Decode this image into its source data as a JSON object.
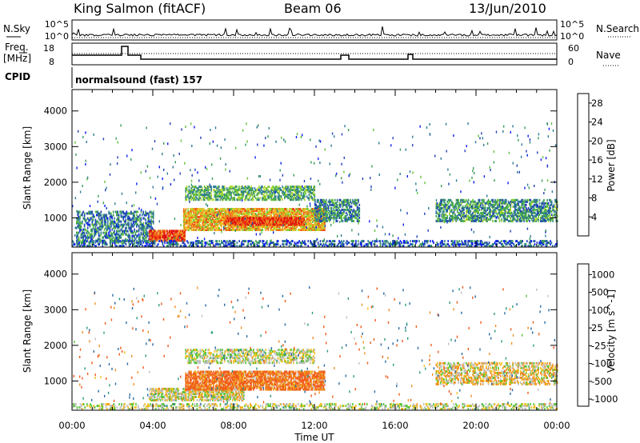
{
  "header": {
    "station": "King Salmon (fitACF)",
    "beam": "Beam 06",
    "date": "13/Jun/2010"
  },
  "noise_panel": {
    "left_label": "N.Sky",
    "right_label": "N.Search",
    "ticks_left": [
      "10^5",
      "10^0"
    ],
    "ticks_right": [
      "10^5",
      "10^0"
    ]
  },
  "freq_panel": {
    "left_label_1": "Freq.",
    "left_label_2": "[MHz]",
    "right_label": "Nave",
    "ticks_left": [
      "18",
      "8"
    ],
    "ticks_right": [
      "60",
      "0"
    ]
  },
  "cpid_panel": {
    "label": "CPID",
    "text": "normalsound (fast) 157"
  },
  "chart_data": [
    {
      "type": "heatmap",
      "title": "",
      "xlabel": "",
      "ylabel": "Slant Range [km]",
      "x_ticks": [
        "00:00",
        "04:00",
        "08:00",
        "12:00",
        "16:00",
        "20:00",
        "00:00"
      ],
      "y_ticks": [
        "1000",
        "2000",
        "3000",
        "4000"
      ],
      "ylim": [
        180,
        4600
      ],
      "xlim_hours": [
        0,
        24
      ],
      "colorbar": {
        "label": "Power [dB]",
        "ticks": [
          "4",
          "8",
          "12",
          "16",
          "20",
          "24",
          "28"
        ],
        "range": [
          0,
          30
        ],
        "colors": [
          "#0a1ef0",
          "#2040b8",
          "#2e7a96",
          "#3a9a5a",
          "#62c23a",
          "#b0d834",
          "#f0c028",
          "#f08a1c",
          "#f04a14",
          "#e01010"
        ]
      },
      "echo_regions": [
        {
          "t0": 0.2,
          "t1": 4.0,
          "r0": 300,
          "r1": 1200,
          "value": 8,
          "density": 0.55
        },
        {
          "t0": 3.8,
          "t1": 5.6,
          "r0": 350,
          "r1": 650,
          "value": 26,
          "density": 0.9
        },
        {
          "t0": 5.5,
          "t1": 12.5,
          "r0": 650,
          "r1": 1250,
          "value": 20,
          "density": 0.85
        },
        {
          "t0": 7.5,
          "t1": 11.5,
          "r0": 800,
          "r1": 1000,
          "value": 27,
          "density": 0.85
        },
        {
          "t0": 5.6,
          "t1": 12.0,
          "r0": 1500,
          "r1": 1900,
          "value": 12,
          "density": 0.6
        },
        {
          "t0": 12.0,
          "t1": 14.2,
          "r0": 900,
          "r1": 1500,
          "value": 9,
          "density": 0.6
        },
        {
          "t0": 18.0,
          "t1": 24.0,
          "r0": 900,
          "r1": 1500,
          "value": 10,
          "density": 0.6
        },
        {
          "t0": 0.0,
          "t1": 24.0,
          "r0": 200,
          "r1": 340,
          "value": 6,
          "density": 0.45
        }
      ]
    },
    {
      "type": "heatmap",
      "title": "",
      "xlabel": "Time UT",
      "ylabel": "Slant Range [km]",
      "x_ticks": [
        "00:00",
        "04:00",
        "08:00",
        "12:00",
        "16:00",
        "20:00",
        "00:00"
      ],
      "y_ticks": [
        "1000",
        "2000",
        "3000",
        "4000"
      ],
      "ylim": [
        180,
        4600
      ],
      "xlim_hours": [
        0,
        24
      ],
      "colorbar": {
        "label": "Velocity [m s^-1]",
        "ticks": [
          "1000",
          "500",
          "100",
          "25",
          "-25",
          "-100",
          "-500",
          "-1000"
        ],
        "colors": [
          "#2030c0",
          "#2a6aa0",
          "#2a9a80",
          "#56c436",
          "#c0c0c0",
          "#f0c020",
          "#f09020",
          "#f05a1a",
          "#e01010"
        ]
      },
      "echo_regions": [
        {
          "t0": 3.8,
          "t1": 8.5,
          "r0": 450,
          "r1": 800,
          "value": -10,
          "density": 0.7
        },
        {
          "t0": 5.6,
          "t1": 12.5,
          "r0": 750,
          "r1": 1250,
          "value": -300,
          "density": 0.75
        },
        {
          "t0": 5.6,
          "t1": 12.0,
          "r0": 1500,
          "r1": 1900,
          "value": 0,
          "density": 0.5
        },
        {
          "t0": 18.0,
          "t1": 24.0,
          "r0": 900,
          "r1": 1500,
          "value": -40,
          "density": 0.5
        },
        {
          "t0": 0.0,
          "t1": 24.0,
          "r0": 200,
          "r1": 360,
          "value": 0,
          "density": 0.4
        }
      ]
    }
  ]
}
